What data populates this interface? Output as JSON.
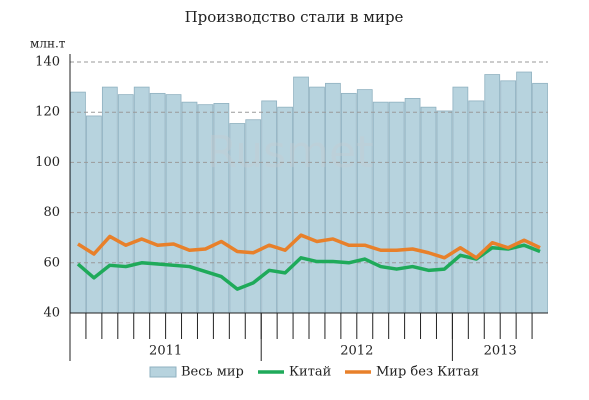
{
  "chart_data": {
    "type": "bar_line",
    "title": "Производство стали в мире",
    "y_label": "млн.т",
    "watermark": "Rusmet",
    "categories": [
      null,
      null,
      null,
      null,
      null,
      null,
      null,
      null,
      null,
      null,
      null,
      null,
      null,
      null,
      null,
      null,
      null,
      null,
      null,
      null,
      null,
      null,
      null,
      null,
      null,
      null,
      null,
      null,
      null,
      null
    ],
    "x_groups": [
      {
        "label": "2011",
        "span": 12
      },
      {
        "label": "2012",
        "span": 12
      },
      {
        "label": "2013",
        "span": 6
      }
    ],
    "ylim": [
      40,
      140
    ],
    "yticks": [
      40,
      60,
      80,
      100,
      120,
      140
    ],
    "grid": true,
    "legend": "bottom",
    "series": [
      {
        "name": "Весь мир",
        "kind": "bar",
        "color": "#b7d3de",
        "values": [
          128,
          118.5,
          130,
          127,
          130,
          127.5,
          127,
          124,
          123,
          123.5,
          115.5,
          117,
          124.5,
          122,
          134,
          130,
          131.5,
          127.5,
          129,
          124,
          124,
          125.5,
          122,
          120.5,
          130,
          124.5,
          135,
          132.5,
          136,
          131.5
        ]
      },
      {
        "name": "Китай",
        "kind": "line",
        "color": "#1faa5a",
        "values": [
          59.5,
          54,
          59,
          58.5,
          60,
          59.5,
          59,
          58.5,
          56.5,
          54.5,
          49.5,
          52,
          57,
          56,
          62,
          60.5,
          60.5,
          60,
          61.5,
          58.5,
          57.5,
          58.5,
          57,
          57.5,
          63,
          61.5,
          66,
          65.5,
          67,
          64.5
        ]
      },
      {
        "name": "Мир без Китая",
        "kind": "line",
        "color": "#e8802a",
        "values": [
          67.5,
          63.5,
          70.5,
          67,
          69.5,
          67,
          67.5,
          65,
          65.5,
          68.5,
          64.5,
          64,
          67,
          65,
          71,
          68.5,
          69.5,
          67,
          67,
          65,
          65,
          65.5,
          64,
          62,
          66,
          62,
          68,
          66,
          69,
          66
        ]
      }
    ]
  }
}
